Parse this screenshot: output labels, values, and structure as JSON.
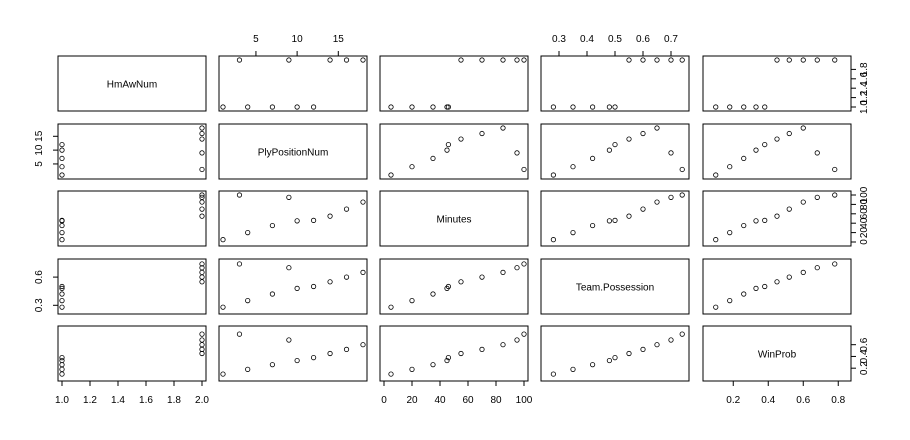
{
  "chart_data": {
    "type": "scatter",
    "variables": [
      "HmAwNum",
      "PlyPositionNum",
      "Minutes",
      "Team.Possession",
      "WinProb"
    ],
    "ranges": {
      "HmAwNum": [
        1,
        2
      ],
      "PlyPositionNum": [
        1,
        18
      ],
      "Minutes": [
        0,
        100
      ],
      "Team.Possession": [
        0.25,
        0.75
      ],
      "WinProb": [
        0.05,
        0.85
      ]
    },
    "axis_ticks": {
      "bottom": [
        [
          "1.0",
          "1.2",
          "1.4",
          "1.6",
          "1.8",
          "2.0"
        ],
        [],
        [
          "0",
          "20",
          "40",
          "60",
          "80",
          "100"
        ],
        [],
        [
          "0.2",
          "0.4",
          "0.6",
          "0.8"
        ]
      ],
      "top": [
        [],
        [
          "5",
          "10",
          "15"
        ],
        [],
        [
          "0.3",
          "0.4",
          "0.5",
          "0.6",
          "0.7"
        ],
        []
      ],
      "left": [
        [],
        [
          "5",
          "10",
          "15"
        ],
        [],
        [
          "0.3",
          "0.6"
        ],
        []
      ],
      "right": [
        [
          "1.0",
          "1.2",
          "1.4",
          "1.6",
          "1.8"
        ],
        [],
        [
          "0",
          "20",
          "40",
          "60",
          "80",
          "100"
        ],
        [],
        [
          "0.2",
          "0.4",
          "0.6"
        ]
      ]
    },
    "pair_samples": {
      "HmAwNum": [
        1,
        1,
        1,
        1,
        1,
        2,
        2,
        2,
        2,
        2
      ],
      "PlyPositionNum": [
        1,
        4,
        7,
        10,
        12,
        14,
        16,
        18,
        9,
        3
      ],
      "Minutes": [
        5,
        20,
        35,
        45,
        46,
        55,
        70,
        85,
        95,
        100
      ],
      "Team.Possession": [
        0.28,
        0.35,
        0.42,
        0.48,
        0.5,
        0.55,
        0.6,
        0.65,
        0.7,
        0.74
      ],
      "WinProb": [
        0.1,
        0.18,
        0.26,
        0.33,
        0.38,
        0.45,
        0.52,
        0.6,
        0.68,
        0.78
      ]
    },
    "grid": false,
    "legend": "none"
  }
}
